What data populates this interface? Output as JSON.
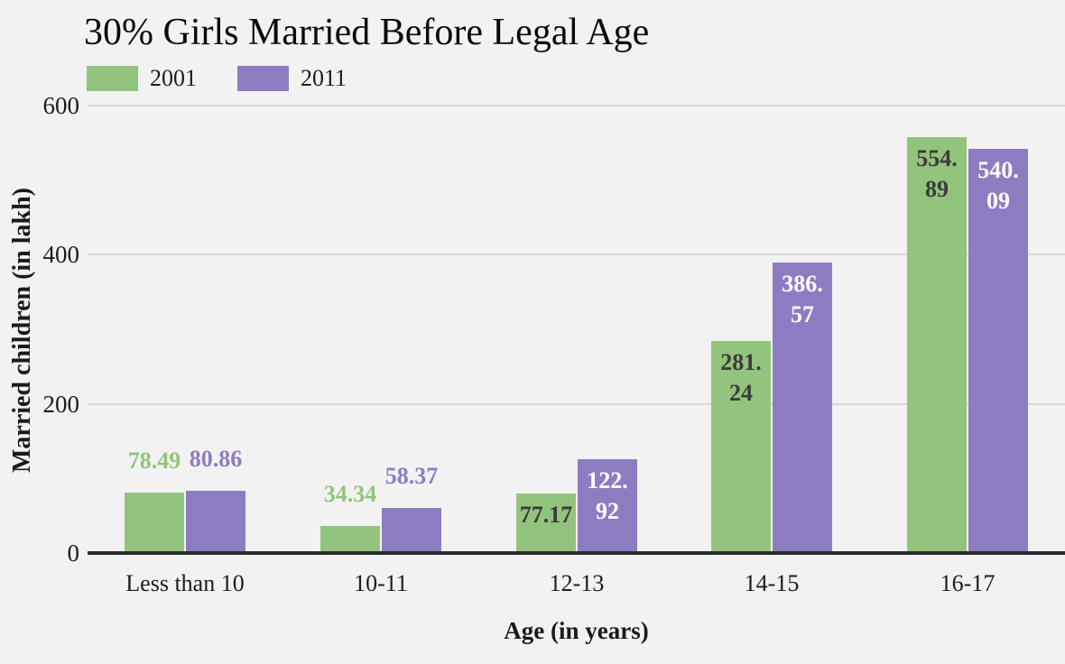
{
  "chart_data": {
    "type": "bar",
    "title": "30% Girls Married Before Legal Age",
    "xlabel": "Age (in years)",
    "ylabel": "Married children (in lakh)",
    "categories": [
      "Less than 10",
      "10-11",
      "12-13",
      "14-15",
      "16-17"
    ],
    "series": [
      {
        "name": "2001",
        "color": "#93c47d",
        "values": [
          78.49,
          34.34,
          77.17,
          281.24,
          554.89
        ],
        "labels": [
          "78.49",
          "34.34",
          "77.17",
          "281.\n24",
          "554.\n89"
        ],
        "label_positions": [
          "above",
          "above",
          "inside",
          "inside",
          "inside"
        ],
        "inside_label_color": "#3b3b3b"
      },
      {
        "name": "2011",
        "color": "#8e7cc3",
        "values": [
          80.86,
          58.37,
          122.92,
          386.57,
          540.09
        ],
        "labels": [
          "80.86",
          "58.37",
          "122.\n92",
          "386.\n57",
          "540.\n09"
        ],
        "label_positions": [
          "above",
          "above",
          "inside",
          "inside",
          "inside"
        ],
        "inside_label_color": "#ffffff"
      }
    ],
    "yticks": [
      0,
      200,
      400,
      600
    ],
    "ylim": [
      0,
      600
    ],
    "grid": true,
    "legend_position": "top-left"
  },
  "colors": {
    "background": "#f2f2f2",
    "gridline": "#d8d8d8",
    "axis_line": "#2b2b2b",
    "tick_text": "#1c1c1c",
    "title_text": "#0a0a0a"
  }
}
